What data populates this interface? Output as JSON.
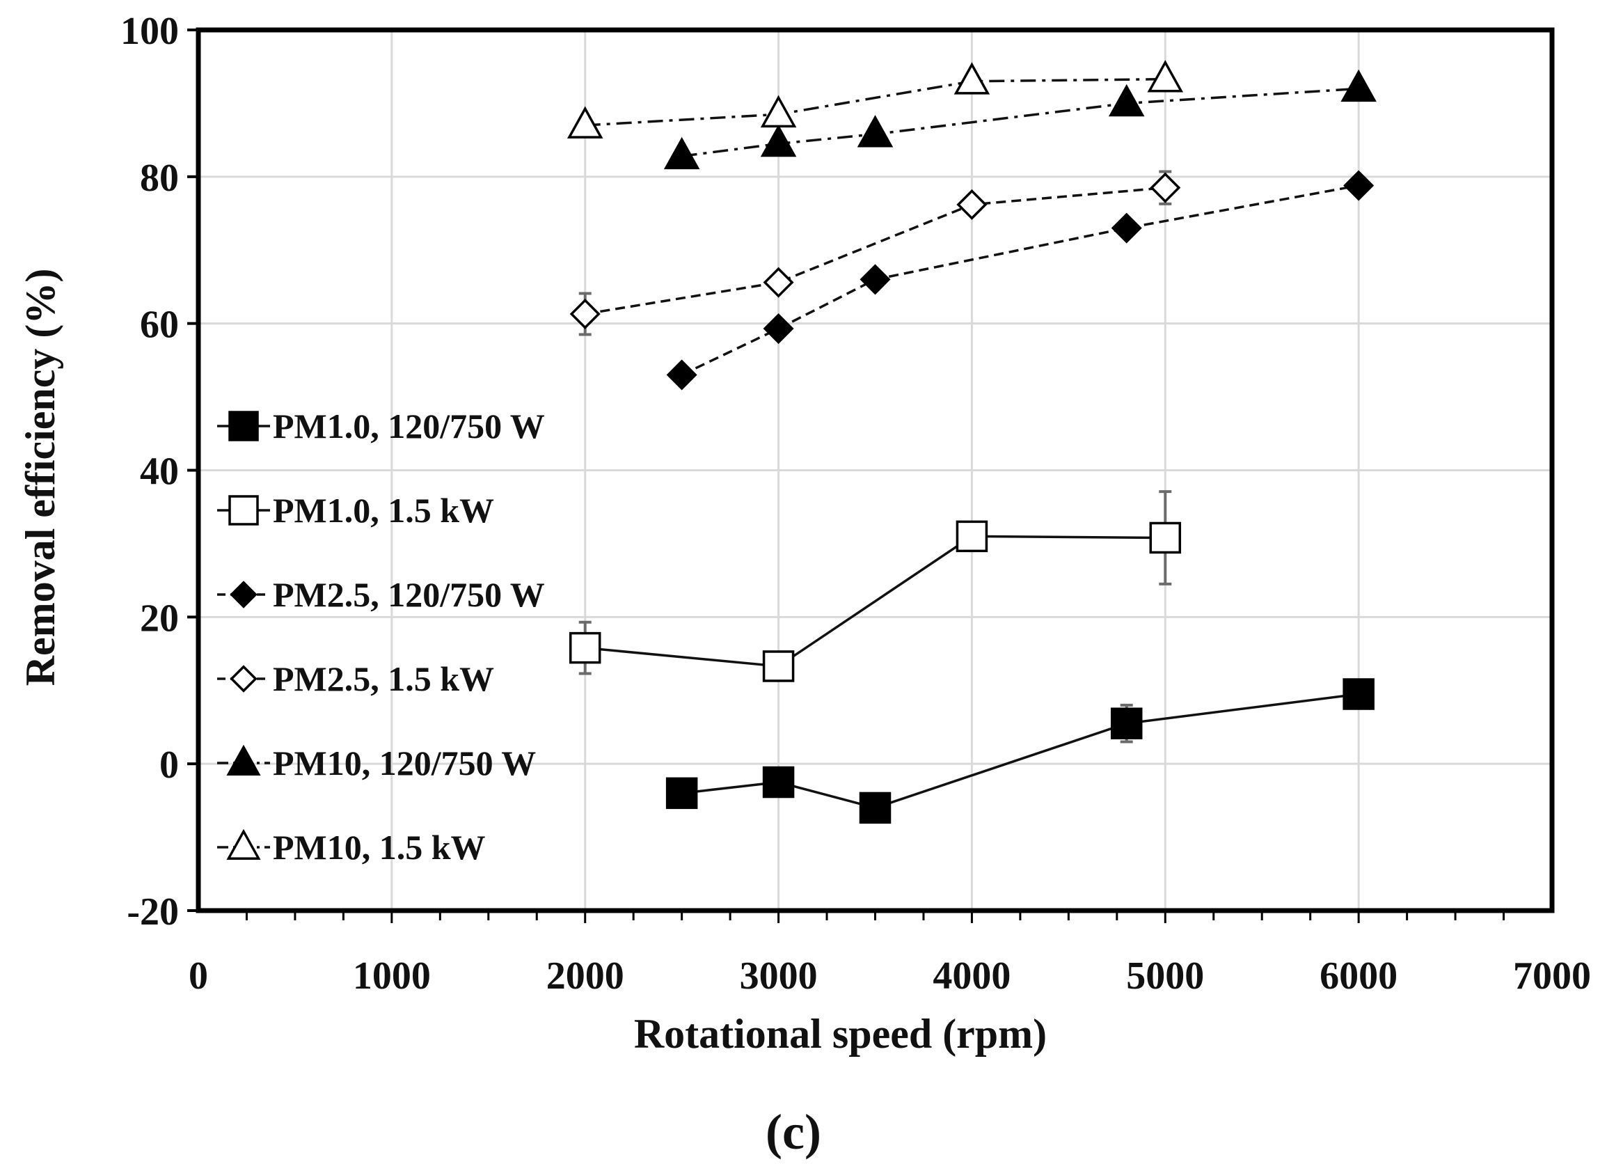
{
  "chart_data": {
    "type": "line",
    "title": "",
    "xlabel": "Rotational speed (rpm)",
    "ylabel": "Removal efficiency (%)",
    "panel_label": "(c)",
    "xlim": [
      0,
      7000
    ],
    "ylim": [
      -20,
      100
    ],
    "x_ticks": [
      0,
      1000,
      2000,
      3000,
      4000,
      5000,
      6000,
      7000
    ],
    "y_ticks": [
      -20,
      0,
      20,
      40,
      60,
      80,
      100
    ],
    "grid": true,
    "legend_position": "left-middle",
    "series": [
      {
        "name": "PM1.0, 120/750 W",
        "marker": "square-filled",
        "line": "solid",
        "x": [
          2500,
          3000,
          3500,
          4800,
          6000
        ],
        "y": [
          -4,
          -2.5,
          -6,
          5.5,
          9.5
        ],
        "err": [
          0,
          0,
          0,
          2.5,
          0
        ]
      },
      {
        "name": "PM1.0, 1.5 kW",
        "marker": "square-open",
        "line": "solid",
        "x": [
          2000,
          3000,
          4000,
          5000
        ],
        "y": [
          15.8,
          13.3,
          31,
          30.8
        ],
        "err": [
          3.5,
          0,
          0,
          6.3
        ]
      },
      {
        "name": "PM2.5, 120/750 W",
        "marker": "diamond-filled",
        "line": "dashed",
        "x": [
          2500,
          3000,
          3500,
          4800,
          6000
        ],
        "y": [
          53,
          59.3,
          66,
          73,
          78.8
        ],
        "err": [
          0,
          0,
          0,
          0,
          0
        ]
      },
      {
        "name": "PM2.5, 1.5 kW",
        "marker": "diamond-open",
        "line": "dashed",
        "x": [
          2000,
          3000,
          4000,
          5000
        ],
        "y": [
          61.3,
          65.6,
          76.2,
          78.5
        ],
        "err": [
          2.8,
          0,
          0,
          2.2
        ]
      },
      {
        "name": "PM10, 120/750 W",
        "marker": "triangle-filled",
        "line": "dashdot",
        "x": [
          2500,
          3000,
          3500,
          4800,
          6000
        ],
        "y": [
          82.8,
          84.5,
          85.8,
          90,
          92
        ],
        "err": [
          0,
          0,
          0,
          0,
          0
        ]
      },
      {
        "name": "PM10, 1.5 kW",
        "marker": "triangle-open",
        "line": "dashdot",
        "x": [
          2000,
          3000,
          4000,
          5000
        ],
        "y": [
          87,
          88.5,
          93,
          93.3
        ],
        "err": [
          0,
          0,
          0,
          0
        ]
      }
    ]
  }
}
